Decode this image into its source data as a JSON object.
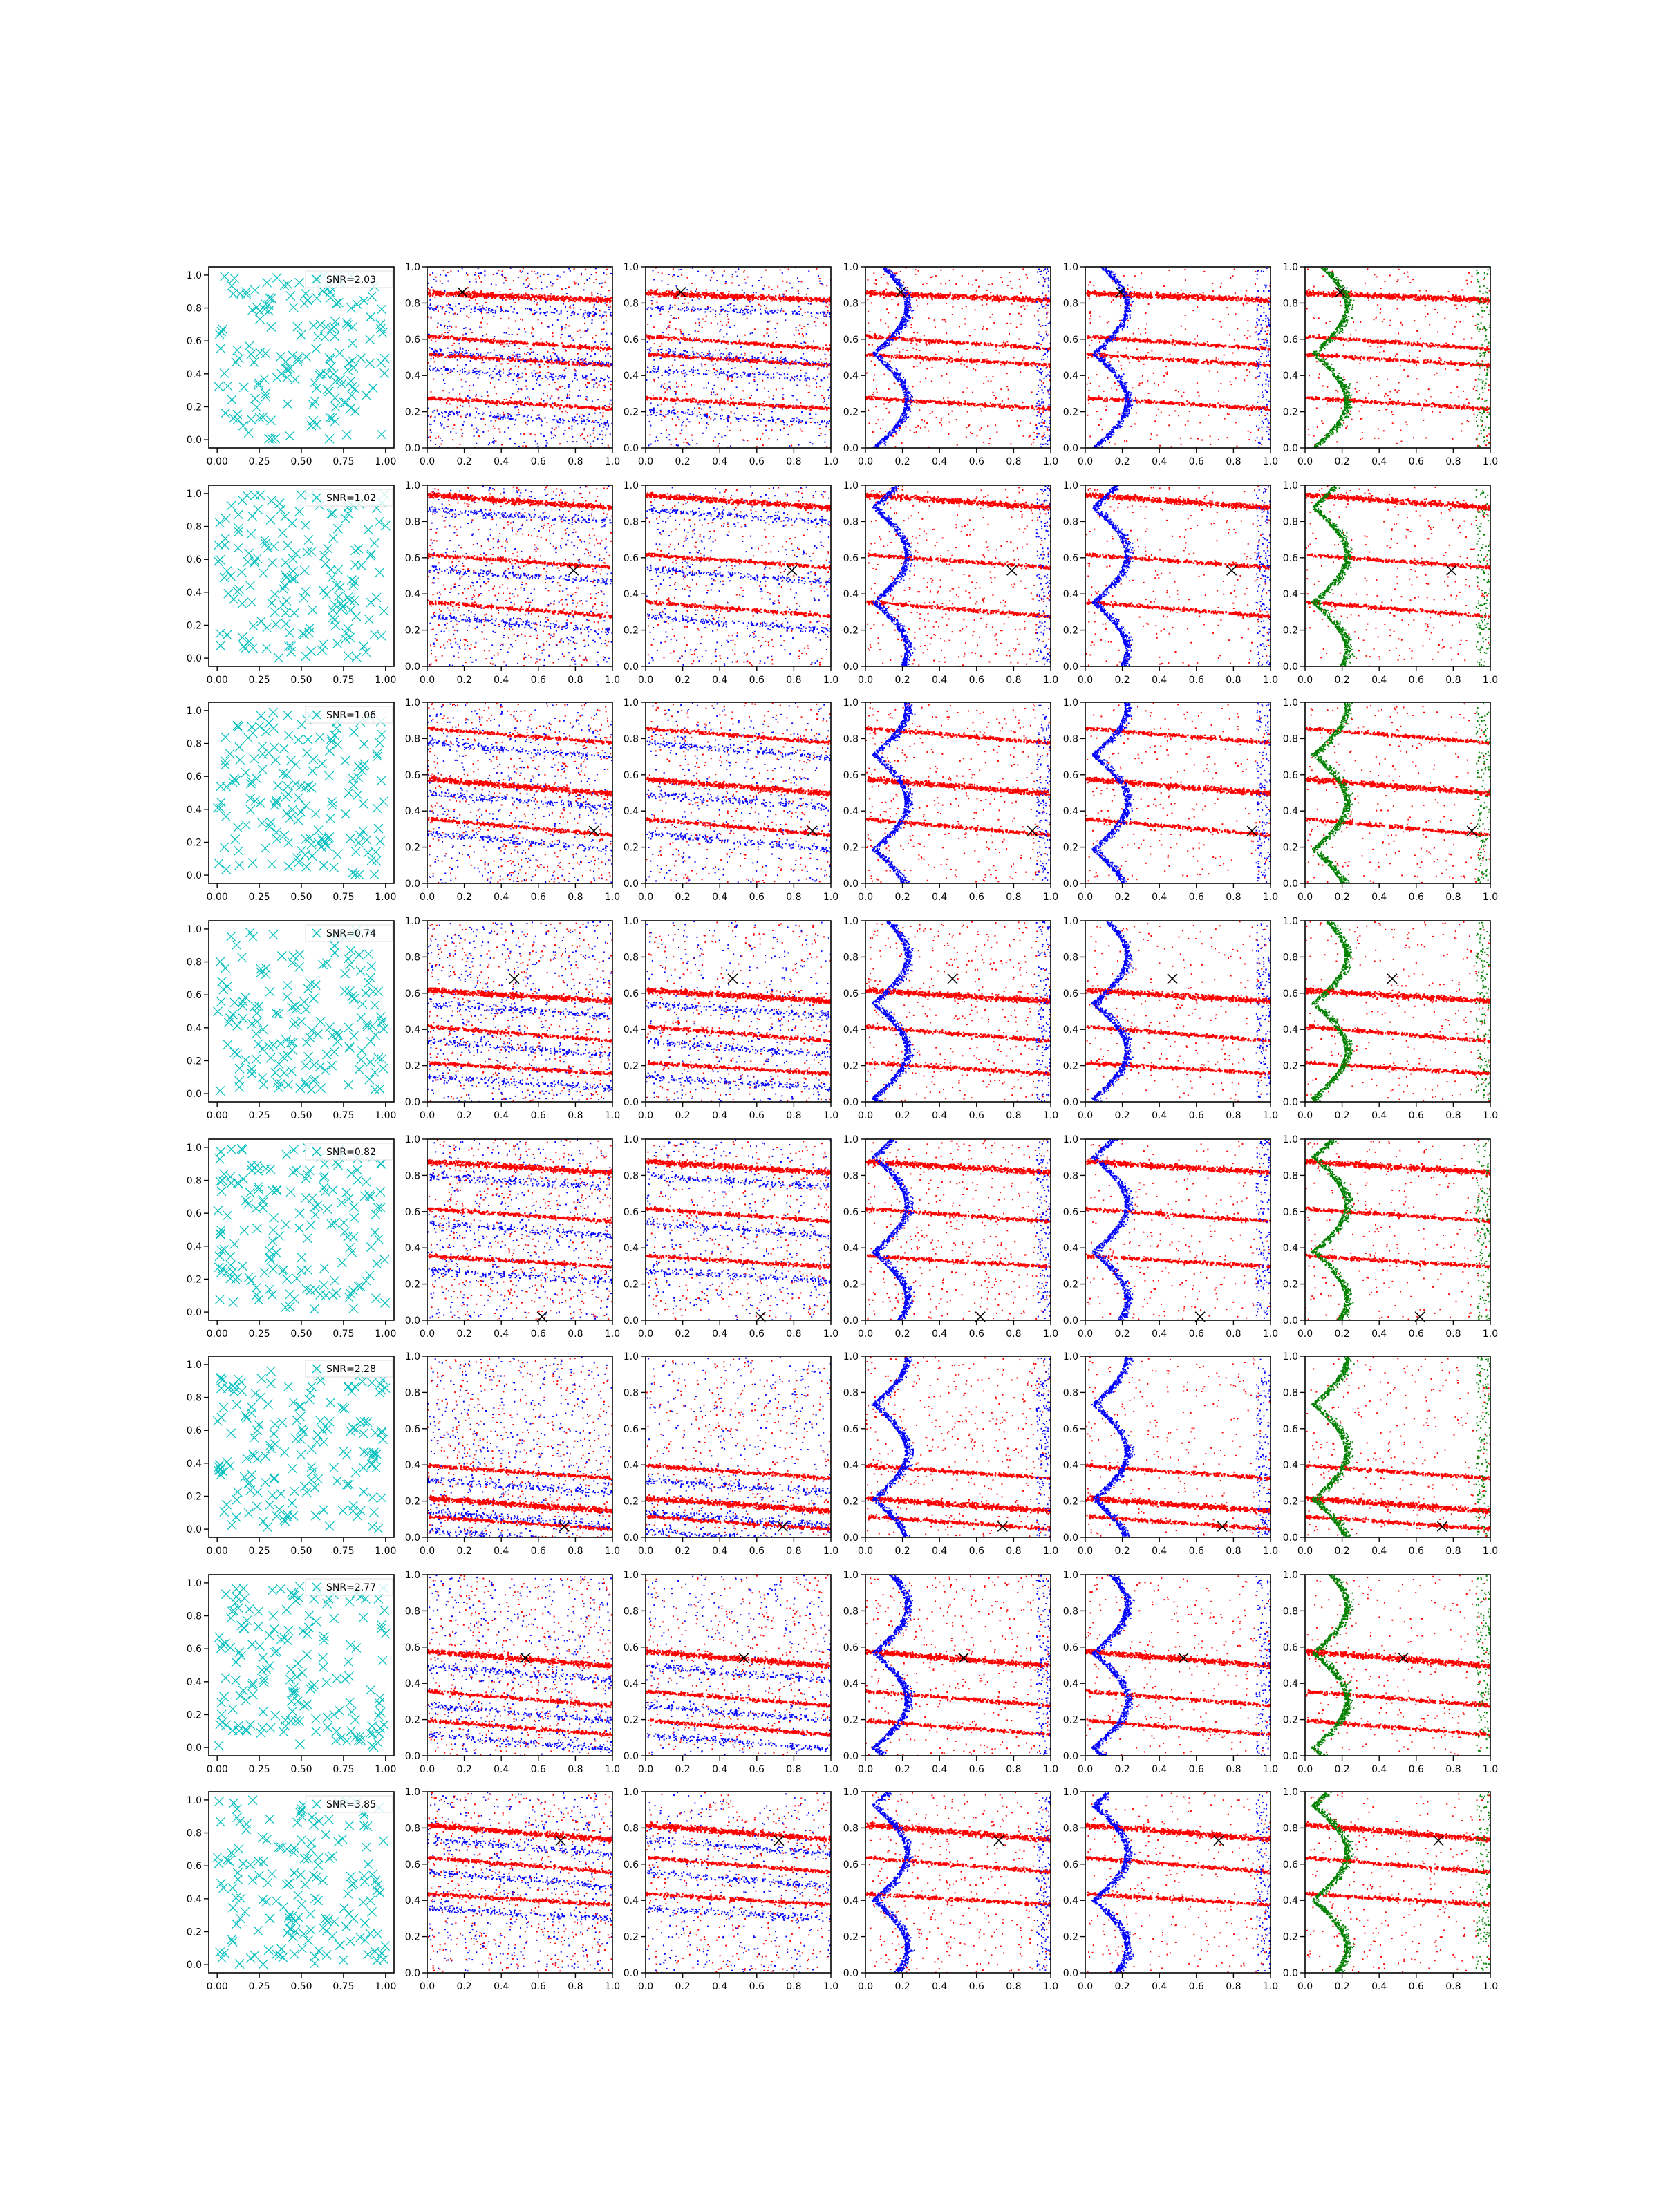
{
  "figure": {
    "rows": 8,
    "cols": 6,
    "colors": {
      "cyan": "#00bfbf",
      "red": "#ff0000",
      "blue": "#0000ff",
      "green": "#008000",
      "marker": "#000000",
      "axis": "#000000"
    }
  },
  "chart_data": {
    "type": "scatter",
    "grid": false,
    "panel_layout": "8 rows x 6 columns",
    "row_snr_labels": [
      "SNR=2.03",
      "SNR=1.02",
      "SNR=1.06",
      "SNR=0.74",
      "SNR=0.82",
      "SNR=2.28",
      "SNR=2.77",
      "SNR=3.85"
    ],
    "legend_placement": "top-right",
    "first_column": {
      "marker": "x",
      "xlim": [
        -0.05,
        1.05
      ],
      "ylim": [
        -0.05,
        1.05
      ],
      "xticks": [
        "0.00",
        "0.25",
        "0.50",
        "0.75",
        "1.00"
      ],
      "yticks": [
        "0.0",
        "0.2",
        "0.4",
        "0.6",
        "0.8",
        "1.0"
      ]
    },
    "other_columns": {
      "xlim": [
        0,
        1
      ],
      "ylim": [
        0,
        1
      ],
      "xticks": [
        "0.0",
        "0.2",
        "0.4",
        "0.6",
        "0.8",
        "1.0"
      ],
      "yticks": [
        "0.0",
        "0.2",
        "0.4",
        "0.6",
        "0.8",
        "1.0"
      ]
    },
    "target_x": [
      [
        0.19,
        0.86
      ],
      [
        0.79,
        0.53
      ],
      [
        0.9,
        0.29
      ],
      [
        0.47,
        0.68
      ],
      [
        0.62,
        0.02
      ],
      [
        0.74,
        0.06
      ],
      [
        0.53,
        0.54
      ],
      [
        0.72,
        0.73
      ]
    ],
    "series_colors": {
      "col2": [
        "red",
        "blue"
      ],
      "col3": [
        "red",
        "blue"
      ],
      "col4": [
        "red",
        "blue"
      ],
      "col5": [
        "red",
        "blue"
      ],
      "col6": [
        "red",
        "green"
      ]
    },
    "red_streaks": [
      [
        [
          0.86,
          0.82
        ],
        [
          0.52,
          0.46
        ],
        [
          0.28,
          0.22
        ],
        [
          0.62,
          0.55
        ]
      ],
      [
        [
          0.95,
          0.88
        ],
        [
          0.62,
          0.55
        ],
        [
          0.36,
          0.28
        ]
      ],
      [
        [
          0.58,
          0.5
        ],
        [
          0.36,
          0.27
        ],
        [
          0.86,
          0.78
        ]
      ],
      [
        [
          0.62,
          0.56
        ],
        [
          0.42,
          0.34
        ],
        [
          0.22,
          0.16
        ]
      ],
      [
        [
          0.88,
          0.82
        ],
        [
          0.62,
          0.55
        ],
        [
          0.36,
          0.3
        ]
      ],
      [
        [
          0.22,
          0.15
        ],
        [
          0.12,
          0.05
        ],
        [
          0.4,
          0.33
        ]
      ],
      [
        [
          0.58,
          0.5
        ],
        [
          0.36,
          0.28
        ],
        [
          0.2,
          0.12
        ]
      ],
      [
        [
          0.82,
          0.74
        ],
        [
          0.64,
          0.56
        ],
        [
          0.44,
          0.38
        ]
      ]
    ]
  }
}
